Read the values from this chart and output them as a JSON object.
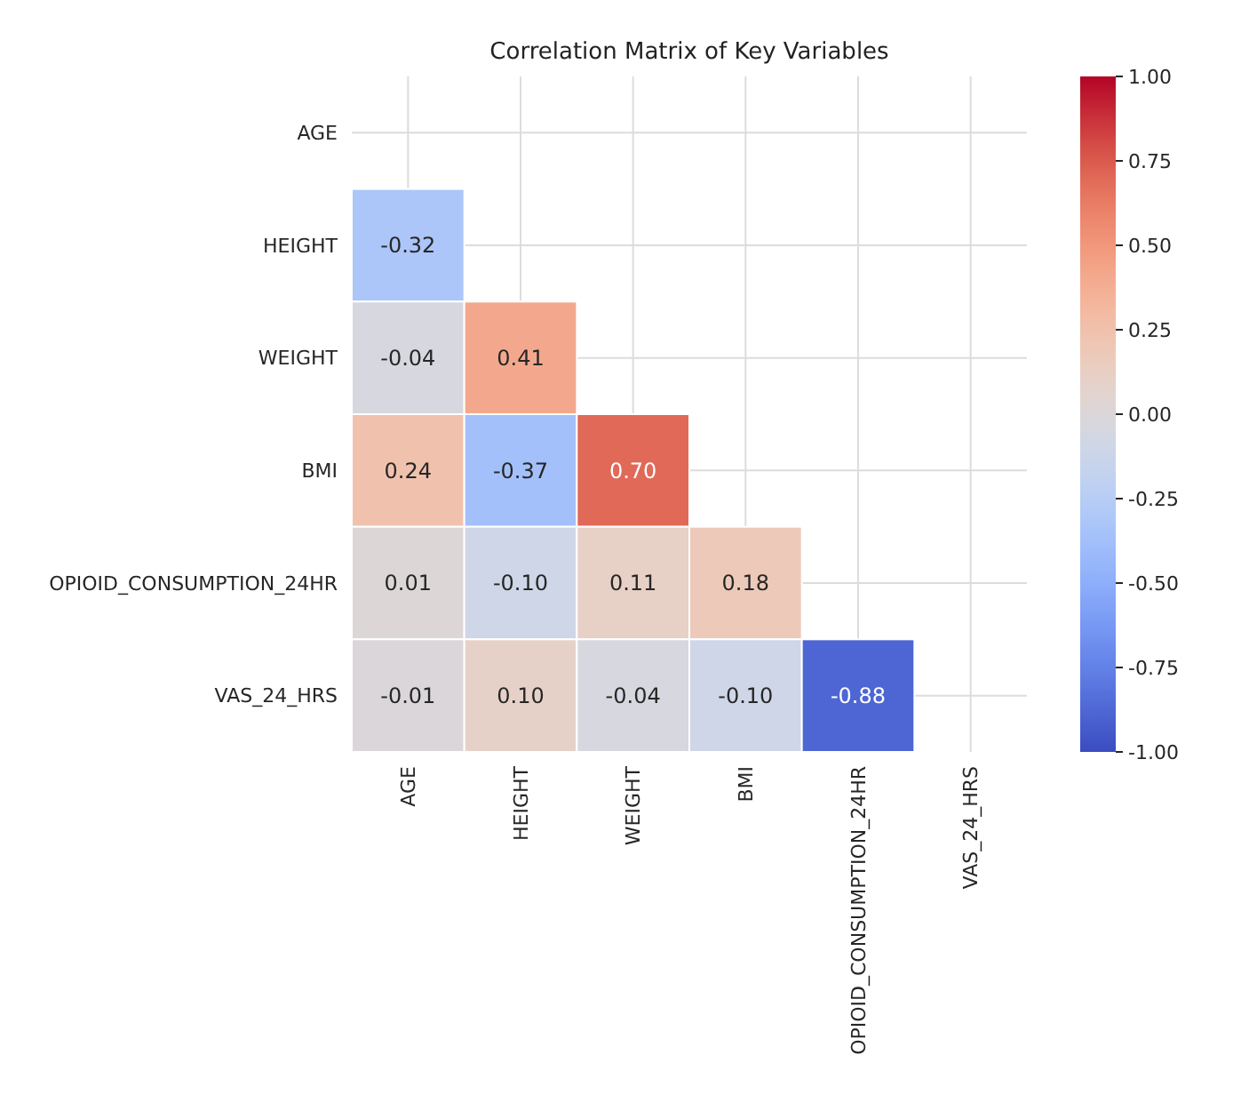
{
  "chart_data": {
    "type": "heatmap",
    "title": "Correlation Matrix of Key Variables",
    "categories": [
      "AGE",
      "HEIGHT",
      "WEIGHT",
      "BMI",
      "OPIOID_CONSUMPTION_24HR",
      "VAS_24_HRS"
    ],
    "y_categories": [
      "AGE",
      "HEIGHT",
      "WEIGHT",
      "BMI",
      "OPIOID_CONSUMPTION_24HR",
      "VAS_24_HRS"
    ],
    "cells": [
      [
        null,
        null,
        null,
        null,
        null,
        null
      ],
      [
        -0.32,
        null,
        null,
        null,
        null,
        null
      ],
      [
        -0.04,
        0.41,
        null,
        null,
        null,
        null
      ],
      [
        0.24,
        -0.37,
        0.7,
        null,
        null,
        null
      ],
      [
        0.01,
        -0.1,
        0.11,
        0.18,
        null,
        null
      ],
      [
        -0.01,
        0.1,
        -0.04,
        -0.1,
        -0.88,
        null
      ]
    ],
    "cell_labels": [
      [
        null,
        null,
        null,
        null,
        null,
        null
      ],
      [
        "-0.32",
        null,
        null,
        null,
        null,
        null
      ],
      [
        "-0.04",
        "0.41",
        null,
        null,
        null,
        null
      ],
      [
        "0.24",
        "-0.37",
        "0.70",
        null,
        null,
        null
      ],
      [
        "0.01",
        "-0.10",
        "0.11",
        "0.18",
        null,
        null
      ],
      [
        "-0.01",
        "0.10",
        "-0.04",
        "-0.10",
        "-0.88",
        null
      ]
    ],
    "clim": [
      -1,
      1
    ],
    "cticks": [
      {
        "value": -1,
        "label": "-1.00"
      },
      {
        "value": -0.75,
        "label": "-0.75"
      },
      {
        "value": -0.5,
        "label": "-0.50"
      },
      {
        "value": -0.25,
        "label": "-0.25"
      },
      {
        "value": 0,
        "label": "0.00"
      },
      {
        "value": 0.25,
        "label": "0.25"
      },
      {
        "value": 0.5,
        "label": "0.50"
      },
      {
        "value": 0.75,
        "label": "0.75"
      },
      {
        "value": 1,
        "label": "1.00"
      }
    ],
    "grid": true
  }
}
